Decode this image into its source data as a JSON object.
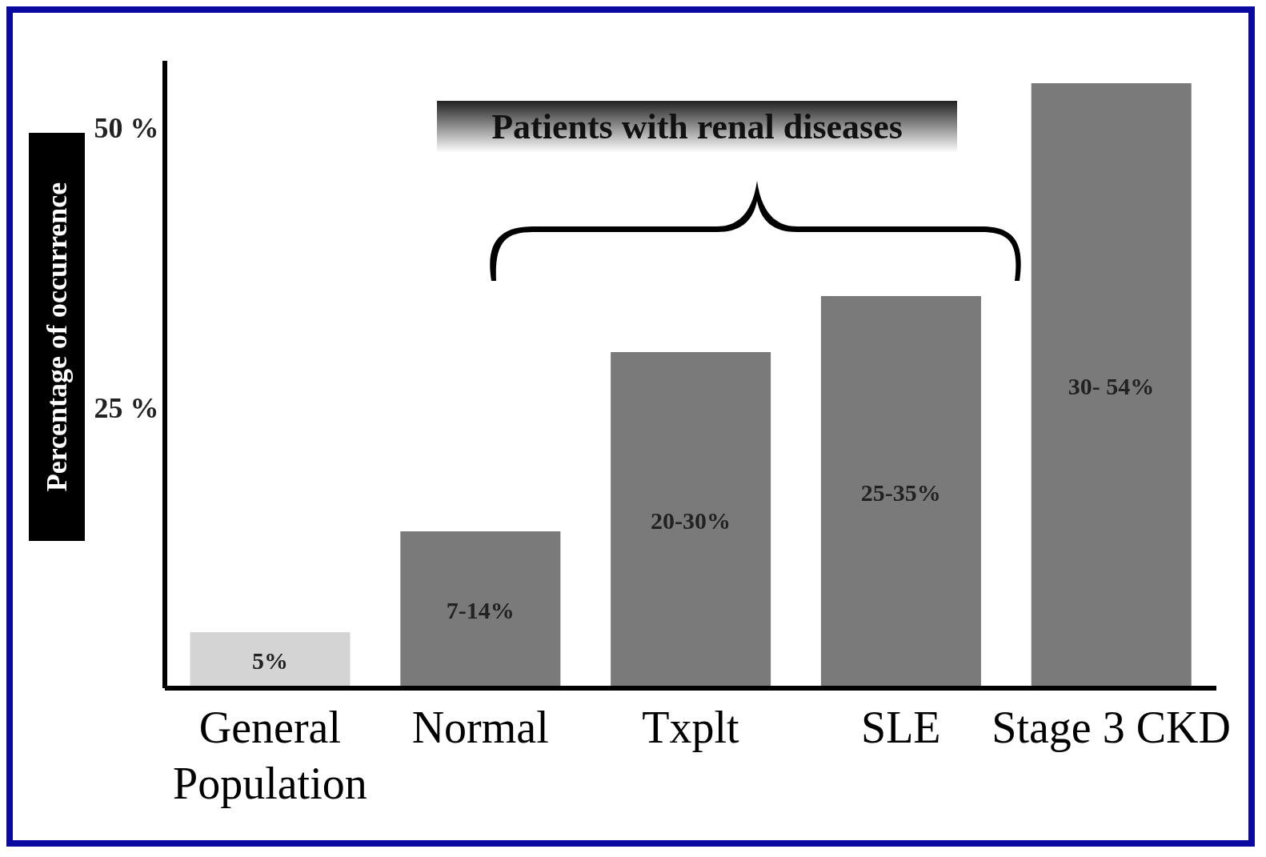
{
  "chart_data": {
    "type": "bar",
    "ylabel": "Percentage of occurrence",
    "categories": [
      "General Population",
      "Normal",
      "Txplt",
      "SLE",
      "Stage 3 CKD"
    ],
    "values": [
      5,
      14,
      30,
      35,
      54
    ],
    "colors": [
      "#d4d4d4",
      "#7a7a7a",
      "#7a7a7a",
      "#7a7a7a",
      "#7a7a7a"
    ],
    "ylim": [
      0,
      56
    ],
    "yticks": [
      {
        "value": 25,
        "label": "25 %"
      },
      {
        "value": 50,
        "label": "50 %"
      }
    ],
    "annotations": [
      "Patients with renal diseases",
      "5%",
      "7-14%",
      "20-30%",
      "25-35%",
      "30- 54%"
    ]
  }
}
